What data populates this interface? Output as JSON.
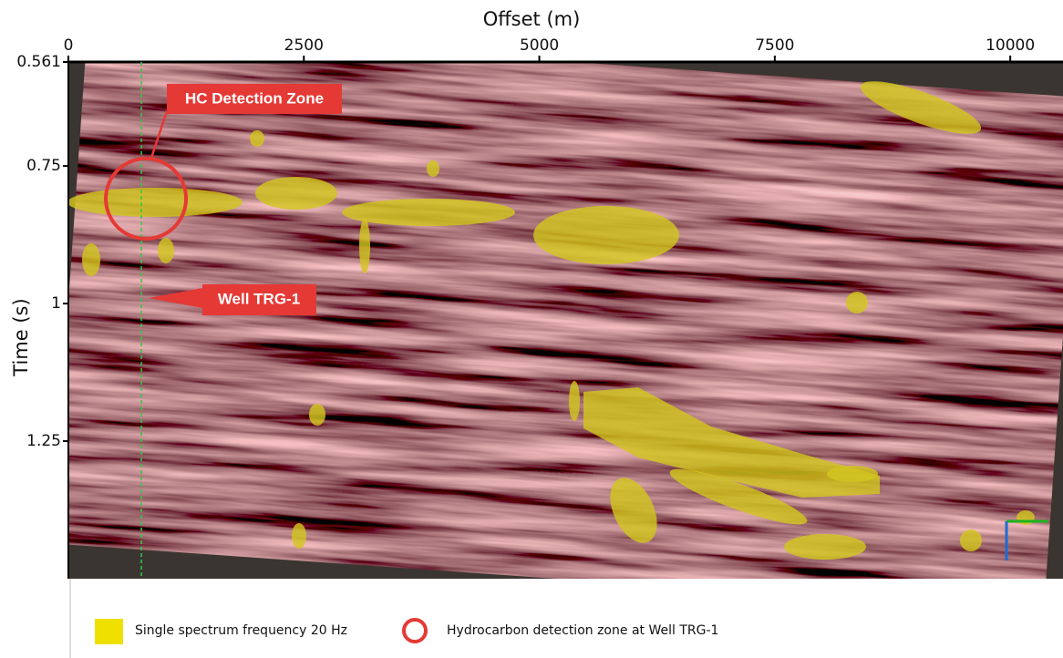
{
  "chart_data": {
    "type": "seismic-section",
    "x_label": "Offset (m)",
    "y_label": "Time (s)",
    "xlim": [
      0,
      10560
    ],
    "xticks": [
      0,
      2500,
      5000,
      7500,
      10000
    ],
    "x_axis_position": "top",
    "ylim": [
      0.561,
      1.5
    ],
    "yticks": [
      0.561,
      0.75,
      1,
      1.25
    ],
    "y_inverted": true,
    "well_offset": 775,
    "annotations": [
      {
        "text": "HC Detection Zone"
      },
      {
        "text": "Well TRG-1"
      }
    ],
    "legend": [
      {
        "label": "Single spectrum frequency 20 Hz",
        "color": "#f0e000"
      },
      {
        "label": "Hydrocarbon detection zone at Well TRG-1",
        "color": "#e53935"
      }
    ]
  }
}
